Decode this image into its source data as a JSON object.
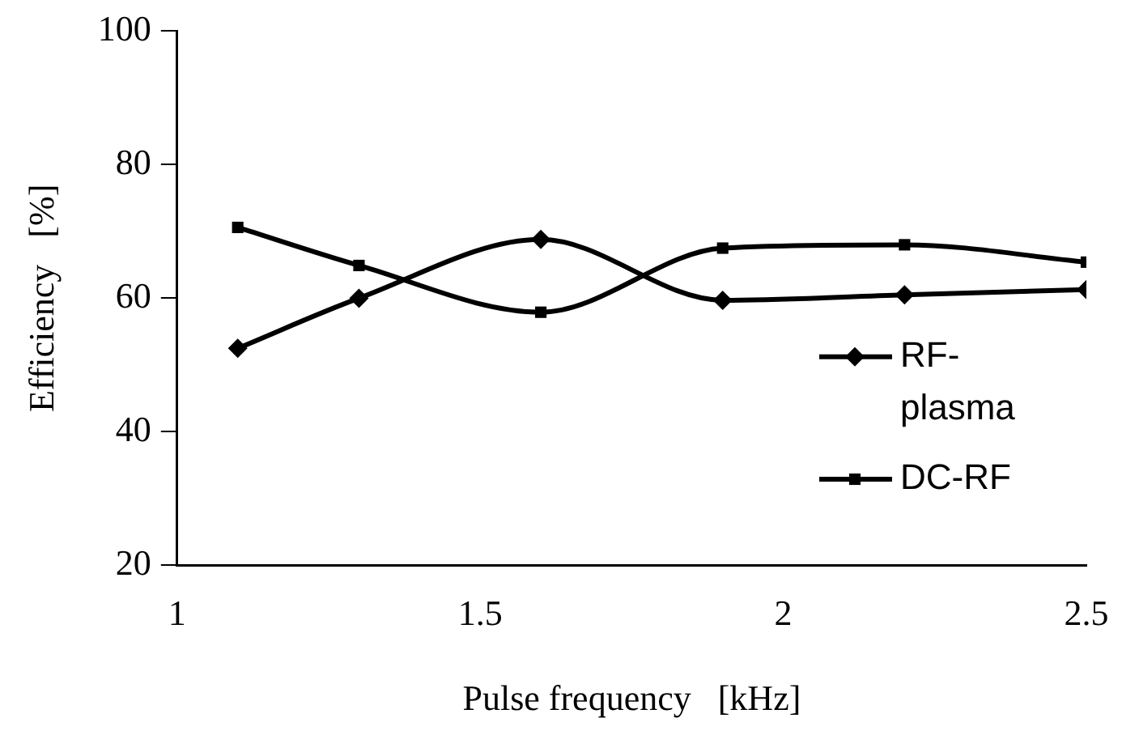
{
  "chart_data": {
    "type": "line",
    "xlabel": "Pulse frequency   [kHz]",
    "ylabel": "Efficiency   [%]",
    "x": [
      1.1,
      1.3,
      1.6,
      1.9,
      2.2,
      2.5
    ],
    "series": [
      {
        "name": "RF-plasma",
        "color": "#000000",
        "marker": "diamond",
        "values": [
          52.5,
          60,
          68.8,
          59.7,
          60.5,
          61.3
        ]
      },
      {
        "name": "DC-RF",
        "color": "#000000",
        "marker": "square",
        "values": [
          70.6,
          64.9,
          57.9,
          67.5,
          68,
          65.4
        ]
      }
    ],
    "xlim": [
      1,
      2.5
    ],
    "xticks": [
      1,
      1.5,
      2,
      2.5
    ],
    "ylim": [
      20,
      100
    ],
    "yticks": [
      20,
      40,
      60,
      80,
      100
    ],
    "grid": false,
    "legend": "bottom right",
    "line_style": "solid"
  }
}
